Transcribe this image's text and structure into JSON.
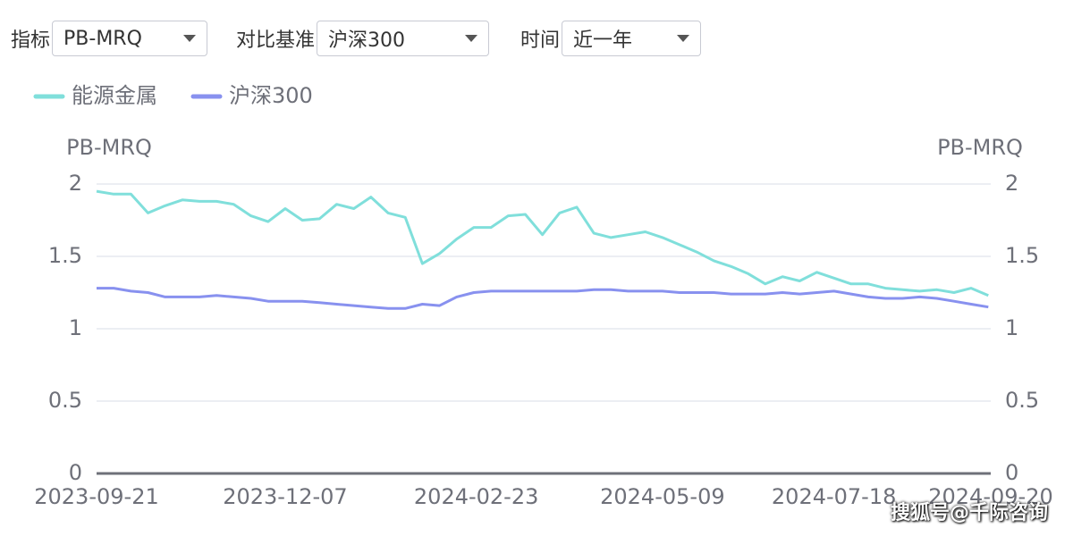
{
  "controls": [
    {
      "label": "指标",
      "value": "PB-MRQ"
    },
    {
      "label": "对比基准",
      "value": "沪深300"
    },
    {
      "label": "时间",
      "value": "近一年"
    }
  ],
  "watermark": "搜狐号@千际咨询",
  "chart_data": {
    "type": "line",
    "ylabel": "PB-MRQ",
    "y2label": "PB-MRQ",
    "x": [
      "2023-09-21",
      "2023-09-28",
      "2023-10-05",
      "2023-10-12",
      "2023-10-19",
      "2023-10-26",
      "2023-11-02",
      "2023-11-09",
      "2023-11-16",
      "2023-11-23",
      "2023-11-30",
      "2023-12-07",
      "2023-12-14",
      "2023-12-21",
      "2023-12-28",
      "2024-01-04",
      "2024-01-11",
      "2024-01-18",
      "2024-01-25",
      "2024-02-01",
      "2024-02-08",
      "2024-02-15",
      "2024-02-22",
      "2024-02-29",
      "2024-03-07",
      "2024-03-14",
      "2024-03-21",
      "2024-03-28",
      "2024-04-04",
      "2024-04-11",
      "2024-04-18",
      "2024-04-25",
      "2024-05-02",
      "2024-05-09",
      "2024-05-16",
      "2024-05-23",
      "2024-05-30",
      "2024-06-06",
      "2024-06-13",
      "2024-06-20",
      "2024-06-27",
      "2024-07-04",
      "2024-07-11",
      "2024-07-18",
      "2024-07-25",
      "2024-08-01",
      "2024-08-08",
      "2024-08-15",
      "2024-08-22",
      "2024-08-29",
      "2024-09-05",
      "2024-09-12",
      "2024-09-19"
    ],
    "series": [
      {
        "name": "能源金属",
        "color": "#80dfdb",
        "values": [
          1.95,
          1.93,
          1.93,
          1.8,
          1.85,
          1.89,
          1.88,
          1.88,
          1.86,
          1.78,
          1.74,
          1.83,
          1.75,
          1.76,
          1.86,
          1.83,
          1.91,
          1.8,
          1.77,
          1.45,
          1.52,
          1.62,
          1.7,
          1.7,
          1.78,
          1.79,
          1.65,
          1.8,
          1.84,
          1.66,
          1.63,
          1.65,
          1.67,
          1.63,
          1.58,
          1.53,
          1.47,
          1.43,
          1.38,
          1.31,
          1.36,
          1.33,
          1.39,
          1.35,
          1.31,
          1.31,
          1.28,
          1.27,
          1.26,
          1.27,
          1.25,
          1.28,
          1.23
        ]
      },
      {
        "name": "沪深300",
        "color": "#8891ef",
        "values": [
          1.28,
          1.28,
          1.26,
          1.25,
          1.22,
          1.22,
          1.22,
          1.23,
          1.22,
          1.21,
          1.19,
          1.19,
          1.19,
          1.18,
          1.17,
          1.16,
          1.15,
          1.14,
          1.14,
          1.17,
          1.16,
          1.22,
          1.25,
          1.26,
          1.26,
          1.26,
          1.26,
          1.26,
          1.26,
          1.27,
          1.27,
          1.26,
          1.26,
          1.26,
          1.25,
          1.25,
          1.25,
          1.24,
          1.24,
          1.24,
          1.25,
          1.24,
          1.25,
          1.26,
          1.24,
          1.22,
          1.21,
          1.21,
          1.22,
          1.21,
          1.19,
          1.17,
          1.15
        ]
      }
    ],
    "xlim": [
      "2023-09-21",
      "2024-09-20"
    ],
    "xticks": [
      "2023-09-21",
      "2023-12-07",
      "2024-02-23",
      "2024-05-09",
      "2024-07-18",
      "2024-09-20"
    ],
    "ylim": [
      0,
      2
    ],
    "yticks": [
      0,
      0.5,
      1,
      1.5,
      2
    ],
    "y2lim": [
      0,
      2
    ],
    "y2ticks": [
      0,
      0.5,
      1,
      1.5,
      2
    ],
    "grid": true
  }
}
